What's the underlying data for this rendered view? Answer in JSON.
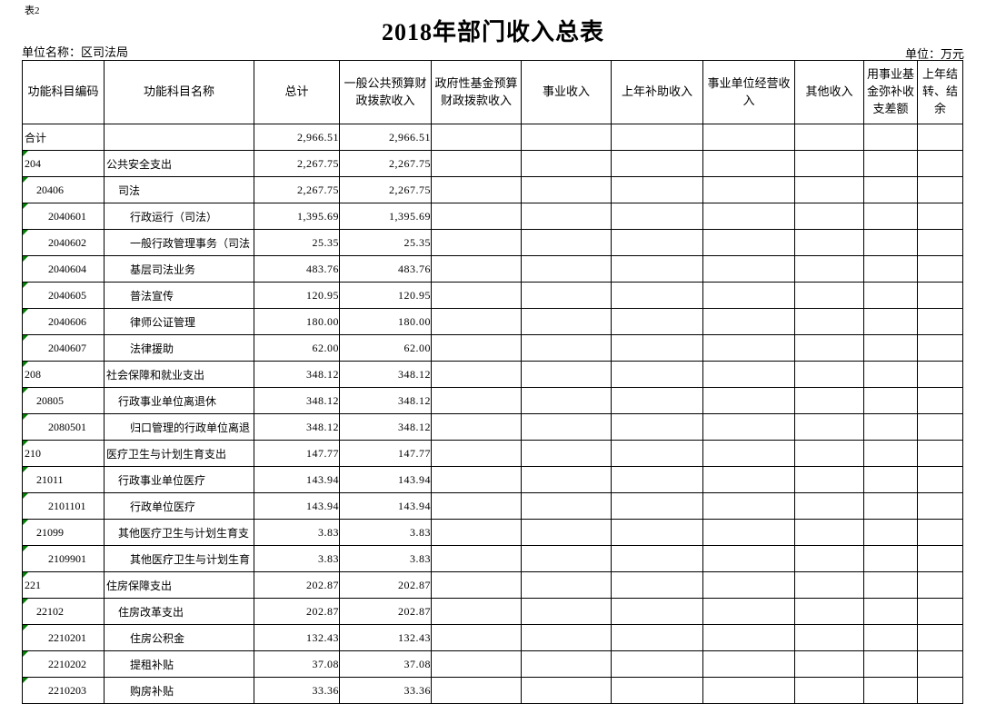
{
  "page": {
    "table_label": "表2",
    "title": "2018年部门收入总表",
    "unit_name": "单位名称：区司法局",
    "unit": "单位：万元"
  },
  "colors": {
    "marker_green": "#008000",
    "grid_border": "#000000"
  },
  "table": {
    "columns": [
      "功能科目编码",
      "功能科目名称",
      "总计",
      "一般公共预算财政拨款收入",
      "政府性基金预算财政拨款收入",
      "事业收入",
      "上年补助收入",
      "事业单位经营收入",
      "其他收入",
      "用事业基金弥补收支差额",
      "上年结转、结余"
    ],
    "rows": [
      {
        "code": "合计",
        "name": "",
        "level": 1,
        "marker": false,
        "total": "2,966.51",
        "general": "2,966.51"
      },
      {
        "code": "204",
        "name": "公共安全支出",
        "level": 1,
        "marker": true,
        "total": "2,267.75",
        "general": "2,267.75"
      },
      {
        "code": "20406",
        "name": "司法",
        "level": 2,
        "marker": true,
        "total": "2,267.75",
        "general": "2,267.75"
      },
      {
        "code": "2040601",
        "name": "行政运行（司法）",
        "level": 3,
        "marker": true,
        "total": "1,395.69",
        "general": "1,395.69"
      },
      {
        "code": "2040602",
        "name": "一般行政管理事务（司法",
        "level": 3,
        "marker": true,
        "total": "25.35",
        "general": "25.35"
      },
      {
        "code": "2040604",
        "name": "基层司法业务",
        "level": 3,
        "marker": true,
        "total": "483.76",
        "general": "483.76"
      },
      {
        "code": "2040605",
        "name": "普法宣传",
        "level": 3,
        "marker": true,
        "total": "120.95",
        "general": "120.95"
      },
      {
        "code": "2040606",
        "name": "律师公证管理",
        "level": 3,
        "marker": true,
        "total": "180.00",
        "general": "180.00"
      },
      {
        "code": "2040607",
        "name": "法律援助",
        "level": 3,
        "marker": true,
        "total": "62.00",
        "general": "62.00"
      },
      {
        "code": "208",
        "name": "社会保障和就业支出",
        "level": 1,
        "marker": true,
        "total": "348.12",
        "general": "348.12"
      },
      {
        "code": "20805",
        "name": "行政事业单位离退休",
        "level": 2,
        "marker": true,
        "total": "348.12",
        "general": "348.12"
      },
      {
        "code": "2080501",
        "name": "归口管理的行政单位离退",
        "level": 3,
        "marker": true,
        "total": "348.12",
        "general": "348.12"
      },
      {
        "code": "210",
        "name": "医疗卫生与计划生育支出",
        "level": 1,
        "marker": true,
        "total": "147.77",
        "general": "147.77"
      },
      {
        "code": "21011",
        "name": "行政事业单位医疗",
        "level": 2,
        "marker": true,
        "total": "143.94",
        "general": "143.94"
      },
      {
        "code": "2101101",
        "name": "行政单位医疗",
        "level": 3,
        "marker": true,
        "total": "143.94",
        "general": "143.94"
      },
      {
        "code": "21099",
        "name": "其他医疗卫生与计划生育支",
        "level": 2,
        "marker": true,
        "total": "3.83",
        "general": "3.83"
      },
      {
        "code": "2109901",
        "name": "其他医疗卫生与计划生育",
        "level": 3,
        "marker": true,
        "total": "3.83",
        "general": "3.83"
      },
      {
        "code": "221",
        "name": "住房保障支出",
        "level": 1,
        "marker": true,
        "total": "202.87",
        "general": "202.87"
      },
      {
        "code": "22102",
        "name": "住房改革支出",
        "level": 2,
        "marker": true,
        "total": "202.87",
        "general": "202.87"
      },
      {
        "code": "2210201",
        "name": "住房公积金",
        "level": 3,
        "marker": true,
        "total": "132.43",
        "general": "132.43"
      },
      {
        "code": "2210202",
        "name": "提租补贴",
        "level": 3,
        "marker": true,
        "total": "37.08",
        "general": "37.08"
      },
      {
        "code": "2210203",
        "name": "购房补贴",
        "level": 3,
        "marker": true,
        "total": "33.36",
        "general": "33.36"
      }
    ]
  }
}
